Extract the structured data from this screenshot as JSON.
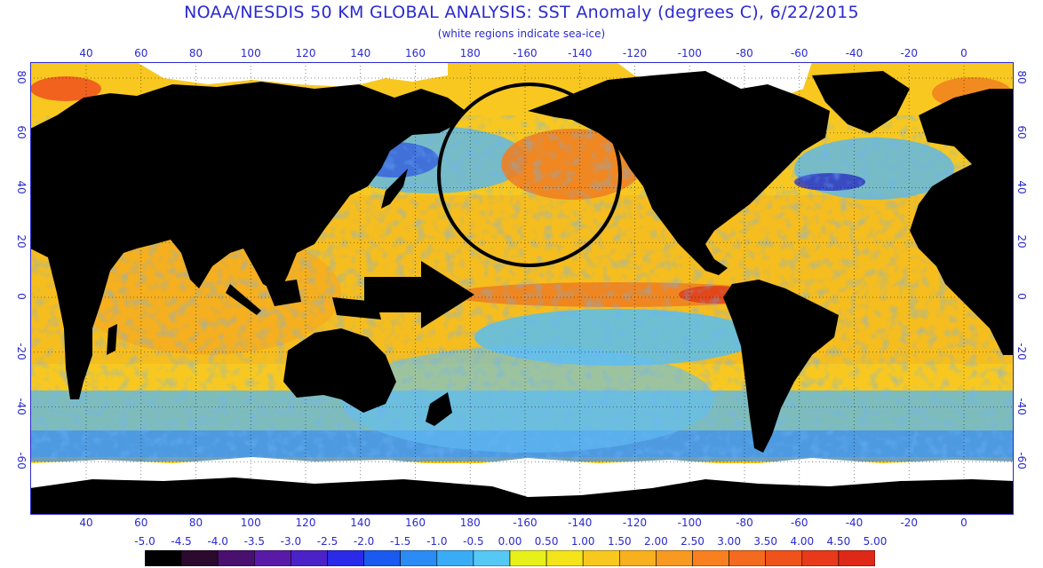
{
  "title": "NOAA/NESDIS 50 KM GLOBAL ANALYSIS: SST Anomaly (degrees C), 6/22/2015",
  "subtitle": "(white regions indicate sea-ice)",
  "lon_ticks": [
    "40",
    "60",
    "80",
    "100",
    "120",
    "140",
    "160",
    "180",
    "-160",
    "-140",
    "-120",
    "-100",
    "-80",
    "-60",
    "-40",
    "-20",
    "0"
  ],
  "lat_ticks": [
    "80",
    "60",
    "40",
    "20",
    "0",
    "-20",
    "-40",
    "-60"
  ],
  "colorbar": {
    "labels": [
      "-5.0",
      "-4.5",
      "-4.0",
      "-3.5",
      "-3.0",
      "-2.5",
      "-2.0",
      "-1.5",
      "-1.0",
      "-0.5",
      "0.00",
      "0.50",
      "1.00",
      "1.50",
      "2.00",
      "2.50",
      "3.00",
      "3.50",
      "4.00",
      "4.50",
      "5.00"
    ],
    "colors": [
      "#000000",
      "#2b0a2e",
      "#4a1070",
      "#5a1aa8",
      "#4b22c8",
      "#2a2ae8",
      "#1a5af0",
      "#2a8cf4",
      "#3aacf6",
      "#56c8f6",
      "#e8f01a",
      "#f4e41a",
      "#f8c81e",
      "#f8b01e",
      "#f89a20",
      "#f88020",
      "#f46a1e",
      "#f0521c",
      "#e83a1a",
      "#e02818"
    ]
  },
  "colors": {
    "land": "#000000",
    "ice": "#ffffff",
    "ocean_warm": "#f8c820",
    "ocean_hot": "#f08020",
    "ocean_cool": "#56b8f0",
    "ocean_cold": "#2a50e0",
    "axis": "#2a2ad0"
  }
}
